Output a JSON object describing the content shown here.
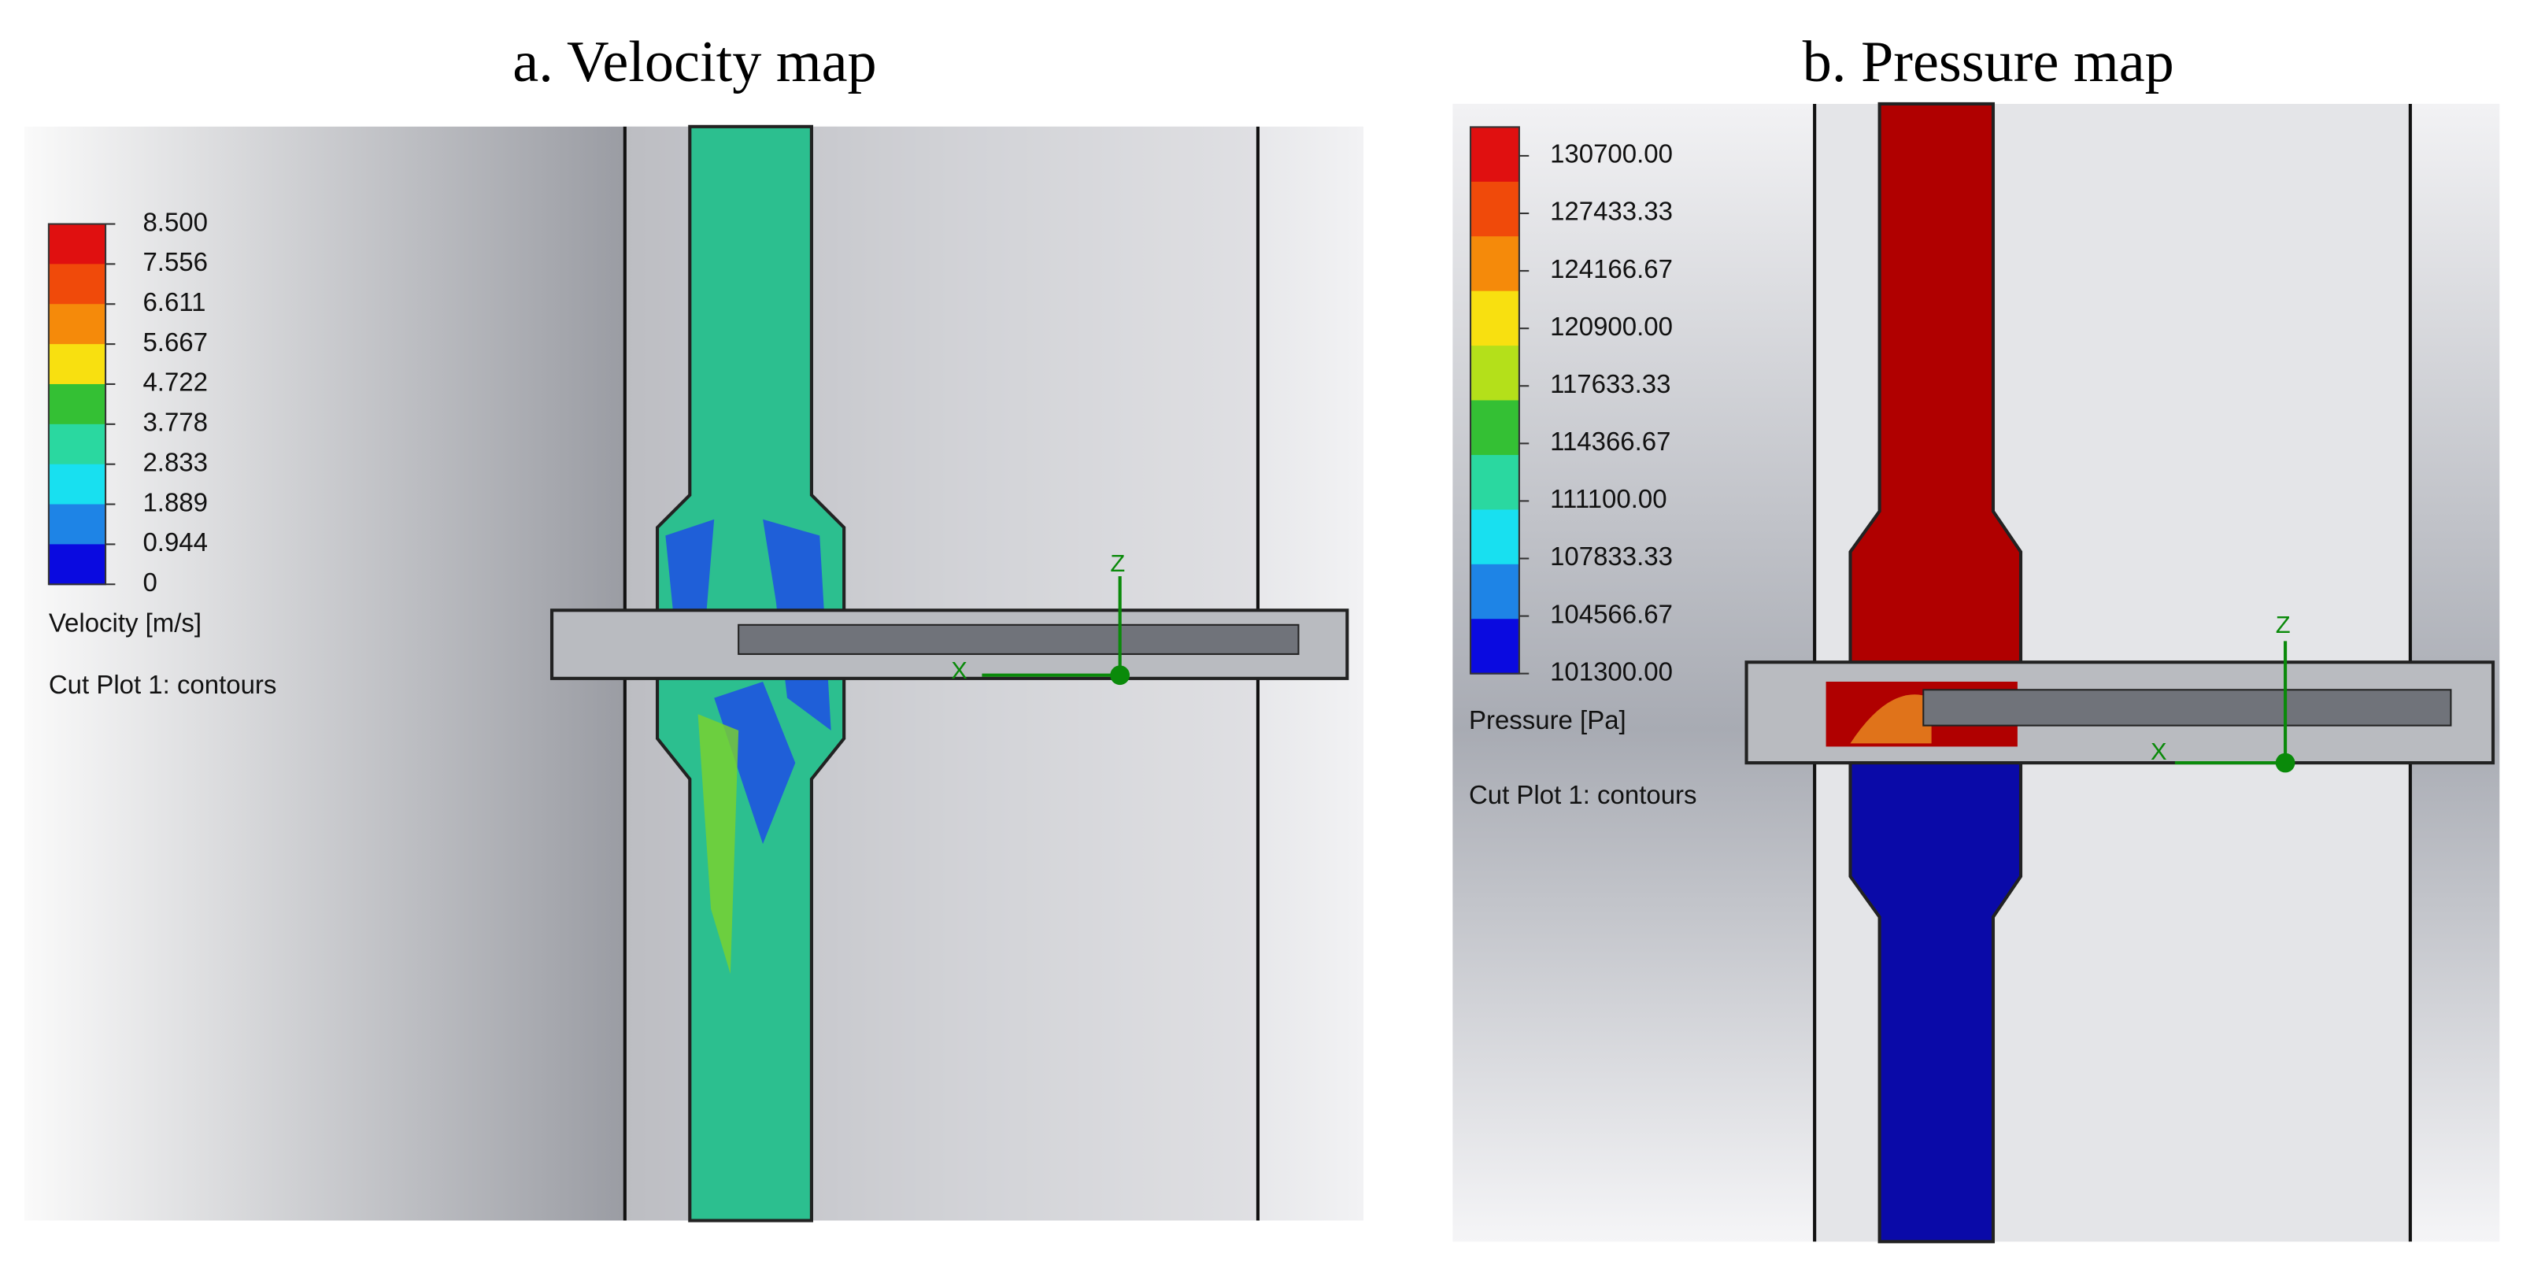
{
  "panels": [
    {
      "title": "a. Velocity map",
      "legend": {
        "labels": [
          "8.500",
          "7.556",
          "6.611",
          "5.667",
          "4.722",
          "3.778",
          "2.833",
          "1.889",
          "0.944",
          "0"
        ],
        "quantity": "Velocity [m/s]"
      },
      "caption": "Cut Plot 1: contours",
      "axes": [
        "Z",
        "X"
      ]
    },
    {
      "title": "b. Pressure map",
      "legend": {
        "labels": [
          "130700.00",
          "127433.33",
          "124166.67",
          "120900.00",
          "117633.33",
          "114366.67",
          "111100.00",
          "107833.33",
          "104566.67",
          "101300.00"
        ],
        "quantity": "Pressure [Pa]"
      },
      "caption": "Cut Plot 1: contours",
      "axes": [
        "Z",
        "X"
      ]
    }
  ]
}
